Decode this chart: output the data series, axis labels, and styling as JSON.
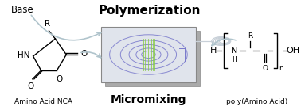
{
  "title": "Polymerization",
  "subtitle_left": "Amino Acid NCA",
  "subtitle_center": "Micromixing",
  "subtitle_right": "poly(Amino Acid)",
  "label_base": "Base",
  "bg_color": "#ffffff",
  "title_fontsize": 11,
  "label_fontsize": 7.5,
  "small_fontsize": 6.5,
  "arrow_color": "#b0c4cc",
  "mixer_color_blue": "#7878cc",
  "mixer_color_green": "#88cc44"
}
